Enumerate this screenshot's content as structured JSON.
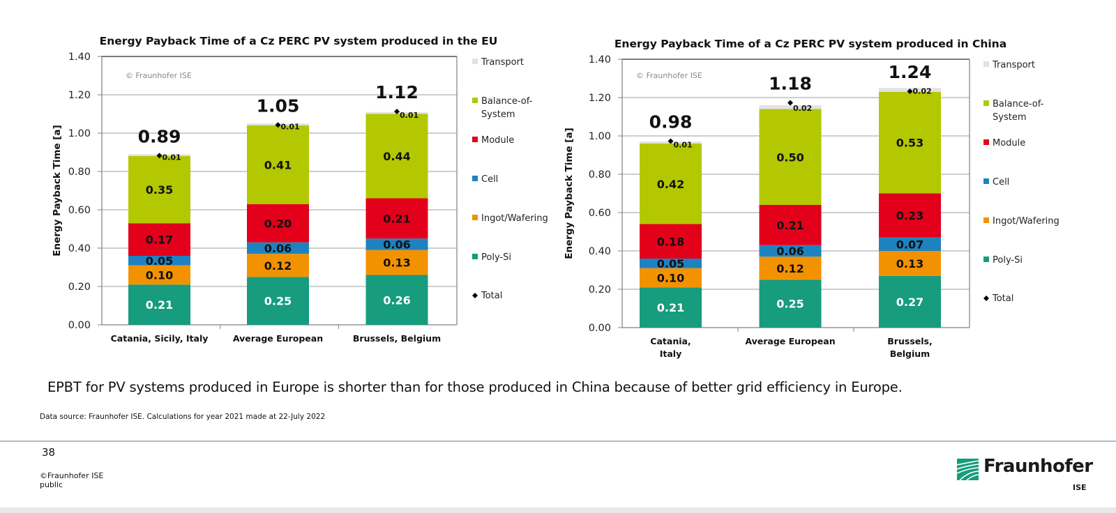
{
  "slide": {
    "caption": "EPBT for PV systems produced in Europe is shorter than for those produced in China because of better grid efficiency in Europe.",
    "data_source": "Data source: Fraunhofer ISE. Calculations for year 2021 made at 22-July 2022",
    "page_number": "38",
    "copyright_line1": "©Fraunhofer ISE",
    "copyright_line2": "public",
    "logo": {
      "name": "Fraunhofer",
      "sub": "ISE",
      "color": "#179c7d"
    }
  },
  "colors": {
    "Transport": "#e2e2e2",
    "Balance-of-System": "#b3c800",
    "Module": "#e2001a",
    "Cell": "#1f82c0",
    "Ingot/Wafering": "#f39200",
    "Poly-Si": "#179c7d",
    "grid": "#b0b0b0",
    "axis": "#808080"
  },
  "chart_data": [
    {
      "type": "bar",
      "stacked": true,
      "title": "Energy Payback Time of a Cz PERC PV system produced in the EU",
      "watermark": "© Fraunhofer ISE",
      "xlabel": "",
      "ylabel": "Energy Payback Time [a]",
      "ylim": [
        0,
        1.4
      ],
      "yticks": [
        "0.00",
        "0.20",
        "0.40",
        "0.60",
        "0.80",
        "1.00",
        "1.20",
        "1.40"
      ],
      "grid": true,
      "legend_position": "right",
      "categories": [
        [
          "Catania, Sicily, Italy"
        ],
        [
          "Average European"
        ],
        [
          "Brussels, Belgium"
        ]
      ],
      "series": [
        {
          "name": "Poly-Si",
          "values": [
            0.21,
            0.25,
            0.26
          ],
          "labels": [
            "0.21",
            "0.25",
            "0.26"
          ]
        },
        {
          "name": "Ingot/Wafering",
          "values": [
            0.1,
            0.12,
            0.13
          ],
          "labels": [
            "0.10",
            "0.12",
            "0.13"
          ]
        },
        {
          "name": "Cell",
          "values": [
            0.05,
            0.06,
            0.06
          ],
          "labels": [
            "0.05",
            "0.06",
            "0.06"
          ]
        },
        {
          "name": "Module",
          "values": [
            0.17,
            0.2,
            0.21
          ],
          "labels": [
            "0.17",
            "0.20",
            "0.21"
          ]
        },
        {
          "name": "Balance-of-System",
          "values": [
            0.35,
            0.41,
            0.44
          ],
          "labels": [
            "0.35",
            "0.41",
            "0.44"
          ]
        },
        {
          "name": "Transport",
          "values": [
            0.01,
            0.01,
            0.01
          ],
          "labels": [
            "0.01",
            "0.01",
            "0.01"
          ]
        }
      ],
      "totals": [
        0.89,
        1.05,
        1.12
      ],
      "total_labels": [
        "0.89",
        "1.05",
        "1.12"
      ],
      "legend": [
        [
          "Transport"
        ],
        [
          "Balance-of-",
          "System"
        ],
        [
          "Module"
        ],
        [
          "Cell"
        ],
        [
          "Ingot/Wafering"
        ],
        [
          "Poly-Si"
        ],
        [
          "Total"
        ]
      ]
    },
    {
      "type": "bar",
      "stacked": true,
      "title": "Energy Payback Time of a Cz PERC PV system produced in China",
      "watermark": "© Fraunhofer ISE",
      "xlabel": "",
      "ylabel": "Energy Payback Time [a]",
      "ylim": [
        0,
        1.4
      ],
      "yticks": [
        "0.00",
        "0.20",
        "0.40",
        "0.60",
        "0.80",
        "1.00",
        "1.20",
        "1.40"
      ],
      "grid": true,
      "legend_position": "right",
      "categories": [
        [
          "Catania,",
          "Italy"
        ],
        [
          "Average European"
        ],
        [
          "Brussels,",
          "Belgium"
        ]
      ],
      "series": [
        {
          "name": "Poly-Si",
          "values": [
            0.21,
            0.25,
            0.27
          ],
          "labels": [
            "0.21",
            "0.25",
            "0.27"
          ]
        },
        {
          "name": "Ingot/Wafering",
          "values": [
            0.1,
            0.12,
            0.13
          ],
          "labels": [
            "0.10",
            "0.12",
            "0.13"
          ]
        },
        {
          "name": "Cell",
          "values": [
            0.05,
            0.06,
            0.07
          ],
          "labels": [
            "0.05",
            "0.06",
            "0.07"
          ]
        },
        {
          "name": "Module",
          "values": [
            0.18,
            0.21,
            0.23
          ],
          "labels": [
            "0.18",
            "0.21",
            "0.23"
          ]
        },
        {
          "name": "Balance-of-System",
          "values": [
            0.42,
            0.5,
            0.53
          ],
          "labels": [
            "0.42",
            "0.50",
            "0.53"
          ]
        },
        {
          "name": "Transport",
          "values": [
            0.01,
            0.02,
            0.02
          ],
          "labels": [
            "0.01",
            "0.02",
            "0.02"
          ]
        }
      ],
      "totals": [
        0.98,
        1.18,
        1.24
      ],
      "total_labels": [
        "0.98",
        "1.18",
        "1.24"
      ],
      "legend": [
        [
          "Transport"
        ],
        [
          "Balance-of-",
          "System"
        ],
        [
          "Module"
        ],
        [
          "Cell"
        ],
        [
          "Ingot/Wafering"
        ],
        [
          "Poly-Si"
        ],
        [
          "Total"
        ]
      ]
    }
  ]
}
